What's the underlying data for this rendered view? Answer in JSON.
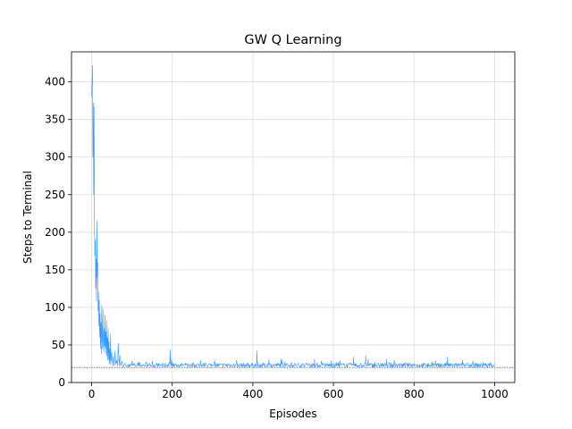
{
  "chart_data": {
    "type": "line",
    "title": "GW Q Learning",
    "xlabel": "Episodes",
    "ylabel": "Steps to Terminal",
    "xlim": [
      -50,
      1050
    ],
    "ylim": [
      0,
      440
    ],
    "xticks": [
      0,
      200,
      400,
      600,
      800,
      1000
    ],
    "yticks": [
      0,
      50,
      100,
      150,
      200,
      250,
      300,
      350,
      400
    ],
    "grid": true,
    "series": [
      {
        "color": "#3399ff",
        "episodes_start": 0,
        "episodes_end": 1000,
        "points": [
          [
            0,
            380
          ],
          [
            2,
            422
          ],
          [
            3,
            300
          ],
          [
            4,
            372
          ],
          [
            5,
            250
          ],
          [
            6,
            367
          ],
          [
            7,
            210
          ],
          [
            8,
            168
          ],
          [
            9,
            190
          ],
          [
            10,
            125
          ],
          [
            11,
            165
          ],
          [
            12,
            108
          ],
          [
            13,
            215
          ],
          [
            14,
            140
          ],
          [
            15,
            160
          ],
          [
            16,
            95
          ],
          [
            17,
            120
          ],
          [
            18,
            75
          ],
          [
            19,
            110
          ],
          [
            20,
            60
          ],
          [
            21,
            92
          ],
          [
            22,
            45
          ],
          [
            23,
            80
          ],
          [
            24,
            38
          ],
          [
            25,
            103
          ],
          [
            26,
            62
          ],
          [
            27,
            45
          ],
          [
            28,
            98
          ],
          [
            29,
            55
          ],
          [
            30,
            40
          ],
          [
            31,
            72
          ],
          [
            32,
            48
          ],
          [
            33,
            90
          ],
          [
            34,
            45
          ],
          [
            35,
            68
          ],
          [
            36,
            38
          ],
          [
            37,
            82
          ],
          [
            38,
            35
          ],
          [
            39,
            60
          ],
          [
            40,
            30
          ],
          [
            41,
            72
          ],
          [
            42,
            30
          ],
          [
            43,
            55
          ],
          [
            44,
            25
          ],
          [
            45,
            45
          ],
          [
            46,
            24
          ],
          [
            47,
            65
          ],
          [
            48,
            28
          ],
          [
            50,
            40
          ],
          [
            52,
            22
          ],
          [
            54,
            35
          ],
          [
            56,
            22
          ],
          [
            58,
            42
          ],
          [
            60,
            24
          ],
          [
            62,
            30
          ],
          [
            64,
            22
          ],
          [
            66,
            52
          ],
          [
            68,
            22
          ],
          [
            70,
            36
          ],
          [
            72,
            22
          ],
          [
            75,
            28
          ],
          [
            78,
            20
          ],
          [
            82,
            26
          ],
          [
            86,
            21
          ],
          [
            90,
            24
          ],
          [
            95,
            21
          ],
          [
            100,
            28
          ],
          [
            110,
            21
          ],
          [
            120,
            26
          ],
          [
            140,
            22
          ],
          [
            160,
            25
          ],
          [
            180,
            21
          ],
          [
            193,
            25
          ],
          [
            195,
            44
          ],
          [
            197,
            21
          ],
          [
            220,
            24
          ],
          [
            260,
            22
          ],
          [
            300,
            24
          ],
          [
            340,
            25
          ],
          [
            360,
            30
          ],
          [
            380,
            23
          ],
          [
            405,
            24
          ],
          [
            410,
            42
          ],
          [
            415,
            22
          ],
          [
            450,
            24
          ],
          [
            500,
            23
          ],
          [
            550,
            25
          ],
          [
            600,
            26
          ],
          [
            640,
            24
          ],
          [
            650,
            34
          ],
          [
            655,
            22
          ],
          [
            680,
            36
          ],
          [
            685,
            23
          ],
          [
            720,
            26
          ],
          [
            760,
            24
          ],
          [
            800,
            25
          ],
          [
            840,
            23
          ],
          [
            880,
            26
          ],
          [
            883,
            34
          ],
          [
            886,
            23
          ],
          [
            920,
            30
          ],
          [
            925,
            24
          ],
          [
            960,
            23
          ],
          [
            1000,
            25
          ]
        ]
      }
    ],
    "reference_line": {
      "y": 20,
      "color": "#ff0000",
      "style": "dotted"
    }
  }
}
